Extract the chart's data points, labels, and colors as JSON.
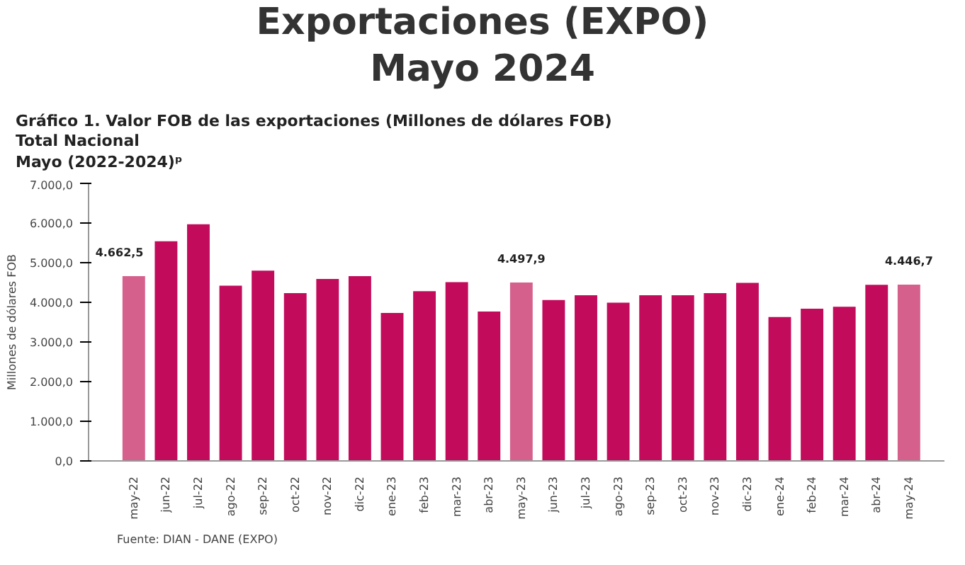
{
  "chart_data": {
    "type": "bar",
    "title": "Exportaciones (EXPO)\nMayo 2024",
    "subtitle": "Gráfico 1. Valor FOB de las exportaciones (Millones de dólares FOB)\nTotal Nacional\nMayo (2022-2024)ᵖ",
    "ylabel": "Millones de dólares FOB",
    "categories": [
      "may-22",
      "jun-22",
      "jul-22",
      "ago-22",
      "sep-22",
      "oct-22",
      "nov-22",
      "dic-22",
      "ene-23",
      "feb-23",
      "mar-23",
      "abr-23",
      "may-23",
      "jun-23",
      "jul-23",
      "ago-23",
      "sep-23",
      "oct-23",
      "nov-23",
      "dic-23",
      "ene-24",
      "feb-24",
      "mar-24",
      "abr-24",
      "may-24"
    ],
    "values": [
      4662.5,
      5540,
      5970,
      4420,
      4800,
      4230,
      4590,
      4660,
      3730,
      4280,
      4510,
      3770,
      4497.9,
      4060,
      4180,
      3990,
      4180,
      4180,
      4230,
      4490,
      3630,
      3840,
      3890,
      4440,
      4446.7
    ],
    "colors": [
      "#d6608c",
      "#c30b5c",
      "#c30b5c",
      "#c30b5c",
      "#c30b5c",
      "#c30b5c",
      "#c30b5c",
      "#c30b5c",
      "#c30b5c",
      "#c30b5c",
      "#c30b5c",
      "#c30b5c",
      "#d6608c",
      "#c30b5c",
      "#c30b5c",
      "#c30b5c",
      "#c30b5c",
      "#c30b5c",
      "#c30b5c",
      "#c30b5c",
      "#c30b5c",
      "#c30b5c",
      "#c30b5c",
      "#c30b5c",
      "#d6608c"
    ],
    "value_labels": [
      "4.662,5",
      null,
      null,
      null,
      null,
      null,
      null,
      null,
      null,
      null,
      null,
      null,
      "4.497,9",
      null,
      null,
      null,
      null,
      null,
      null,
      null,
      null,
      null,
      null,
      null,
      "4.446,7"
    ],
    "ylim": [
      0,
      7000
    ],
    "yticks": [
      {
        "value": 0,
        "label": "0,0"
      },
      {
        "value": 1000,
        "label": "1.000,0"
      },
      {
        "value": 2000,
        "label": "2.000,0"
      },
      {
        "value": 3000,
        "label": "3.000,0"
      },
      {
        "value": 4000,
        "label": "4.000,0"
      },
      {
        "value": 5000,
        "label": "5.000,0"
      },
      {
        "value": 6000,
        "label": "6.000,0"
      },
      {
        "value": 7000,
        "label": "7.000,0"
      }
    ],
    "grid": false,
    "annotations": [
      "Fuente: DIAN - DANE (EXPO)"
    ]
  }
}
